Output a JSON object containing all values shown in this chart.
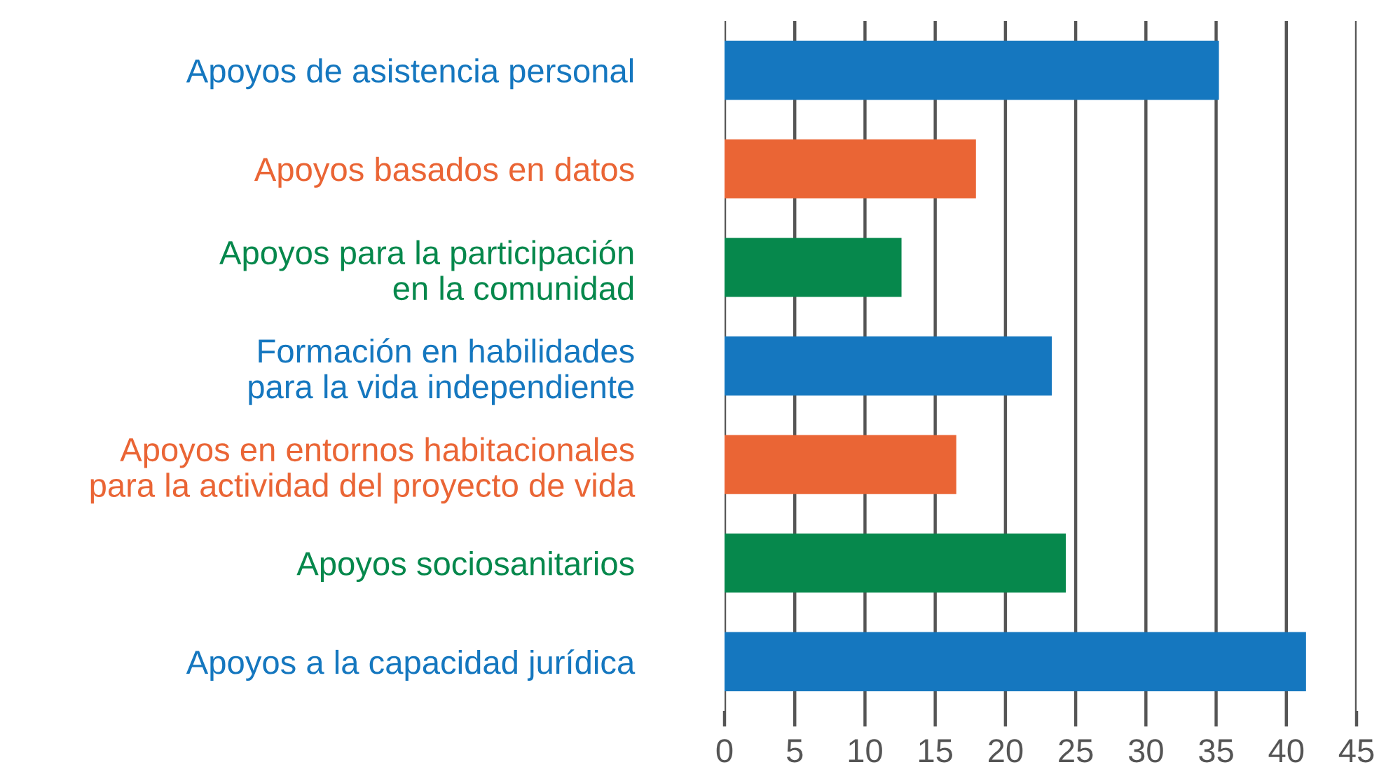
{
  "chart_data": {
    "type": "bar",
    "orientation": "horizontal",
    "categories": [
      "Apoyos de asistencia personal",
      "Apoyos basados en datos",
      "Apoyos para la participación\nen la comunidad",
      "Formación en habilidades\npara la vida independiente",
      "Apoyos en entornos habitacionales\npara la actividad del proyecto de vida",
      "Apoyos sociosanitarios",
      "Apoyos a la capacidad jurídica"
    ],
    "values": [
      35.2,
      17.9,
      12.6,
      23.3,
      16.5,
      24.3,
      41.4
    ],
    "colors": [
      "#1577bf",
      "#ea6535",
      "#06884c",
      "#1577bf",
      "#ea6535",
      "#06884c",
      "#1577bf"
    ],
    "xlim": [
      0,
      45
    ],
    "xticks": [
      0,
      5,
      10,
      15,
      20,
      25,
      30,
      35,
      40,
      45
    ],
    "grid": "x",
    "legend": false
  }
}
